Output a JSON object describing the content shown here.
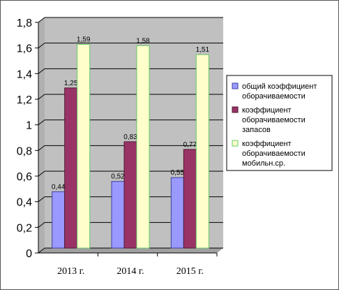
{
  "chart_data": {
    "type": "bar",
    "categories": [
      "2013 г.",
      "2014 г.",
      "2015 г."
    ],
    "series": [
      {
        "name": "общий коэффициент оборачиваемости",
        "legend_lines": [
          "общий коэффициент",
          "оборачиваемости"
        ],
        "values": [
          0.44,
          0.52,
          0.55
        ],
        "labels": [
          "0,44",
          "0,52",
          "0,55"
        ],
        "color": "#9999ff",
        "stroke": "#4040a0"
      },
      {
        "name": "коэффициент оборачиваемости запасов",
        "legend_lines": [
          "коэффициент",
          "оборачиваемости",
          "запасов"
        ],
        "values": [
          1.25,
          0.83,
          0.77
        ],
        "labels": [
          "1,25",
          "0,83",
          "0,77"
        ],
        "color": "#993366",
        "stroke": "#4d1a33"
      },
      {
        "name": "коэффициент оборачиваемости мобильн.ср.",
        "legend_lines": [
          "коэффициент",
          "оборачиваемости",
          "мобильн.ср."
        ],
        "values": [
          1.59,
          1.58,
          1.51
        ],
        "labels": [
          "1,59",
          "1,58",
          "1,51"
        ],
        "color": "#ffffcc",
        "stroke": "#66cc66"
      }
    ],
    "ylim": [
      0,
      1.8
    ],
    "yticks": [
      0,
      0.2,
      0.4,
      0.6,
      0.8,
      1,
      1.2,
      1.4,
      1.6,
      1.8
    ],
    "ytick_labels": [
      "0",
      "0,2",
      "0,4",
      "0,6",
      "0,8",
      "1",
      "1,2",
      "1,4",
      "1,6",
      "1,8"
    ],
    "plot_background": "#c0c0c0",
    "grid": "horizontal",
    "legend_position": "right"
  }
}
